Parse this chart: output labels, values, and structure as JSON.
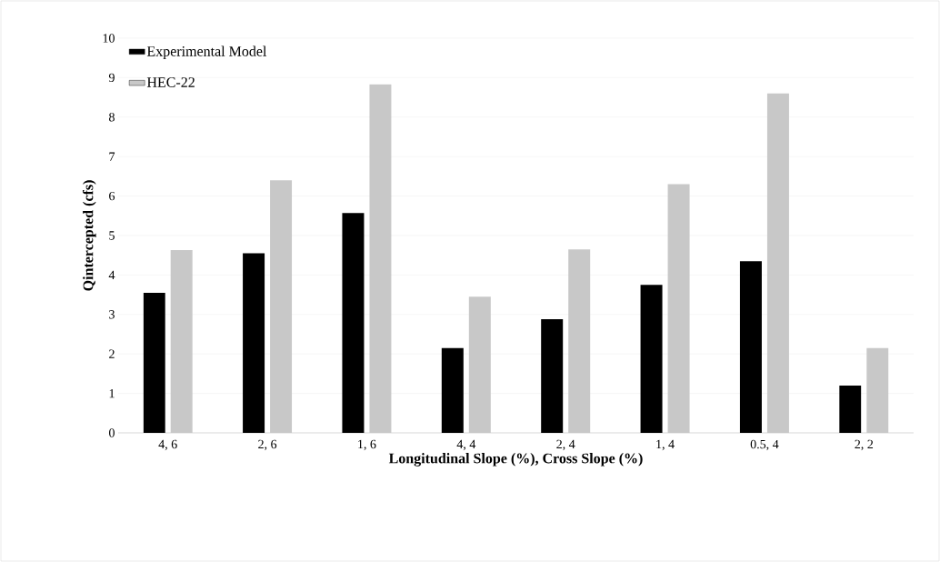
{
  "chart_data": {
    "type": "bar",
    "xlabel": "Longitudinal Slope (%), Cross Slope (%)",
    "ylabel": "Qintercepted (cfs)",
    "categories": [
      "4, 6",
      "2, 6",
      "1, 6",
      "4, 4",
      "2, 4",
      "1, 4",
      "0.5, 4",
      "2, 2"
    ],
    "series": [
      {
        "name": "Experimental Model",
        "color": "#000000",
        "values": [
          3.55,
          4.55,
          5.57,
          2.15,
          2.88,
          3.75,
          4.35,
          1.2
        ]
      },
      {
        "name": "HEC-22",
        "color": "#c8c8c8",
        "values": [
          4.63,
          6.4,
          8.83,
          3.45,
          4.65,
          6.3,
          8.6,
          2.15
        ]
      }
    ],
    "ylim": [
      0,
      10
    ],
    "yticks": [
      0,
      1,
      2,
      3,
      4,
      5,
      6,
      7,
      8,
      9,
      10
    ],
    "grid": "y",
    "legend": "top left"
  }
}
